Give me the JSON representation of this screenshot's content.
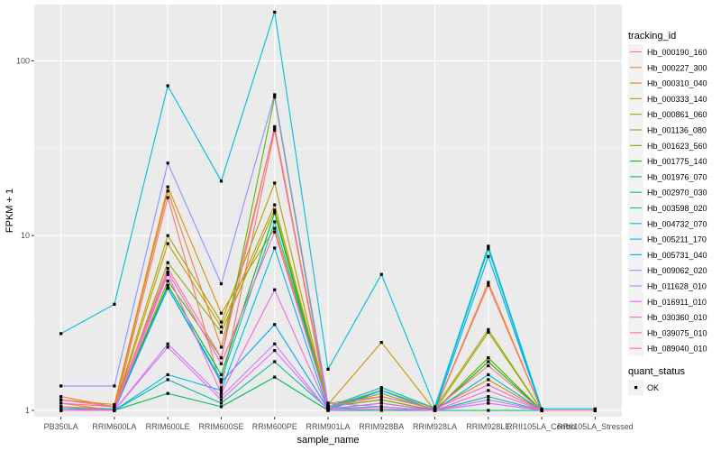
{
  "chart_data": {
    "type": "line",
    "xlabel": "sample_name",
    "ylabel": "FPKM + 1",
    "yscale": "log10",
    "ylim": [
      0.92,
      210
    ],
    "yticks": [
      1,
      10,
      100
    ],
    "grid": true,
    "legend_placement": "right",
    "categories": [
      "PB350LA",
      "RRIM600LA",
      "RRIM600LE",
      "RRIM600SE",
      "RRIM600PE",
      "RRIM901LA",
      "RRIM928BA",
      "RRIM928LA",
      "RRIM928LE",
      "RRII105LA_Control",
      "RRII105LA_Stressed"
    ],
    "legend_title": "tracking_id",
    "series": [
      {
        "name": "Hb_000190_160",
        "color": "#F8766D",
        "values": [
          1.02,
          1.0,
          16.5,
          1.35,
          40.0,
          1.02,
          1.1,
          1.0,
          5.2,
          1.0,
          1.0
        ]
      },
      {
        "name": "Hb_000227_300",
        "color": "#EC8239",
        "values": [
          1.2,
          1.05,
          18.0,
          2.3,
          41.0,
          1.05,
          1.15,
          1.0,
          5.4,
          1.0,
          1.0
        ]
      },
      {
        "name": "Hb_000310_040",
        "color": "#DB8E00",
        "values": [
          1.15,
          1.08,
          19.0,
          3.6,
          11.0,
          1.1,
          1.2,
          1.02,
          1.5,
          1.0,
          1.0
        ]
      },
      {
        "name": "Hb_000333_140",
        "color": "#C79800",
        "values": [
          1.1,
          1.0,
          9.0,
          3.0,
          15.0,
          1.08,
          2.45,
          1.0,
          2.0,
          1.0,
          1.0
        ]
      },
      {
        "name": "Hb_000861_060",
        "color": "#AEA200",
        "values": [
          1.05,
          1.02,
          10.0,
          3.2,
          20.0,
          1.05,
          1.3,
          1.03,
          2.9,
          1.0,
          1.0
        ]
      },
      {
        "name": "Hb_001136_080",
        "color": "#8FAA00",
        "values": [
          1.05,
          1.0,
          7.0,
          2.8,
          14.0,
          1.05,
          1.25,
          1.0,
          2.8,
          1.0,
          1.0
        ]
      },
      {
        "name": "Hb_001623_560",
        "color": "#64B200",
        "values": [
          1.0,
          1.0,
          5.5,
          2.0,
          62.0,
          1.05,
          1.15,
          1.0,
          2.0,
          1.0,
          1.0
        ]
      },
      {
        "name": "Hb_001775_140",
        "color": "#00B81B",
        "values": [
          1.0,
          1.0,
          5.2,
          1.6,
          13.5,
          1.02,
          1.1,
          1.0,
          1.9,
          1.0,
          1.0
        ]
      },
      {
        "name": "Hb_001976_070",
        "color": "#00BD5C",
        "values": [
          1.0,
          1.0,
          1.25,
          1.05,
          1.55,
          1.0,
          1.0,
          1.0,
          1.0,
          1.0,
          1.0
        ]
      },
      {
        "name": "Hb_002970_030",
        "color": "#00C08E",
        "values": [
          1.0,
          1.0,
          1.5,
          1.1,
          1.9,
          1.02,
          1.05,
          1.0,
          1.2,
          1.0,
          1.0
        ]
      },
      {
        "name": "Hb_003598_020",
        "color": "#00C1B7",
        "values": [
          1.02,
          1.02,
          5.0,
          1.5,
          12.0,
          1.05,
          1.35,
          1.03,
          8.4,
          1.0,
          1.0
        ]
      },
      {
        "name": "Hb_004732_070",
        "color": "#00BDDC",
        "values": [
          2.75,
          4.05,
          72.0,
          20.5,
          190.0,
          1.72,
          6.0,
          1.05,
          8.7,
          1.02,
          1.02
        ]
      },
      {
        "name": "Hb_005211_170",
        "color": "#00B4F0",
        "values": [
          1.0,
          1.0,
          1.6,
          1.3,
          8.5,
          1.0,
          1.3,
          1.0,
          1.6,
          1.0,
          1.0
        ]
      },
      {
        "name": "Hb_005731_040",
        "color": "#00A5FF",
        "values": [
          1.0,
          1.0,
          5.0,
          1.45,
          3.1,
          1.02,
          1.3,
          1.0,
          7.6,
          1.0,
          1.0
        ]
      },
      {
        "name": "Hb_009062_020",
        "color": "#8B93FF",
        "values": [
          1.38,
          1.38,
          26.0,
          5.3,
          64.0,
          1.1,
          1.05,
          1.0,
          1.1,
          1.0,
          1.0
        ]
      },
      {
        "name": "Hb_011628_010",
        "color": "#C77CFF",
        "values": [
          1.0,
          1.0,
          2.4,
          1.2,
          2.4,
          1.0,
          1.05,
          1.0,
          1.15,
          1.0,
          1.0
        ]
      },
      {
        "name": "Hb_016911_010",
        "color": "#E46CF4",
        "values": [
          1.0,
          1.0,
          2.3,
          1.15,
          2.2,
          1.0,
          1.02,
          1.0,
          1.1,
          1.0,
          1.0
        ]
      },
      {
        "name": "Hb_030360_010",
        "color": "#F564E3",
        "values": [
          1.05,
          1.0,
          6.0,
          1.25,
          4.9,
          1.02,
          1.1,
          1.0,
          1.3,
          1.0,
          1.0
        ]
      },
      {
        "name": "Hb_039075_010",
        "color": "#FF62BC",
        "values": [
          1.1,
          1.05,
          6.2,
          1.85,
          10.5,
          1.05,
          1.2,
          1.02,
          1.4,
          1.0,
          1.0
        ]
      },
      {
        "name": "Hb_089040_010",
        "color": "#FD6F93",
        "values": [
          1.15,
          1.05,
          6.5,
          2.0,
          42.0,
          1.05,
          1.2,
          1.02,
          1.8,
          1.0,
          1.0
        ]
      }
    ],
    "shape_legend": {
      "title": "quant_status",
      "entries": [
        "OK"
      ]
    }
  }
}
